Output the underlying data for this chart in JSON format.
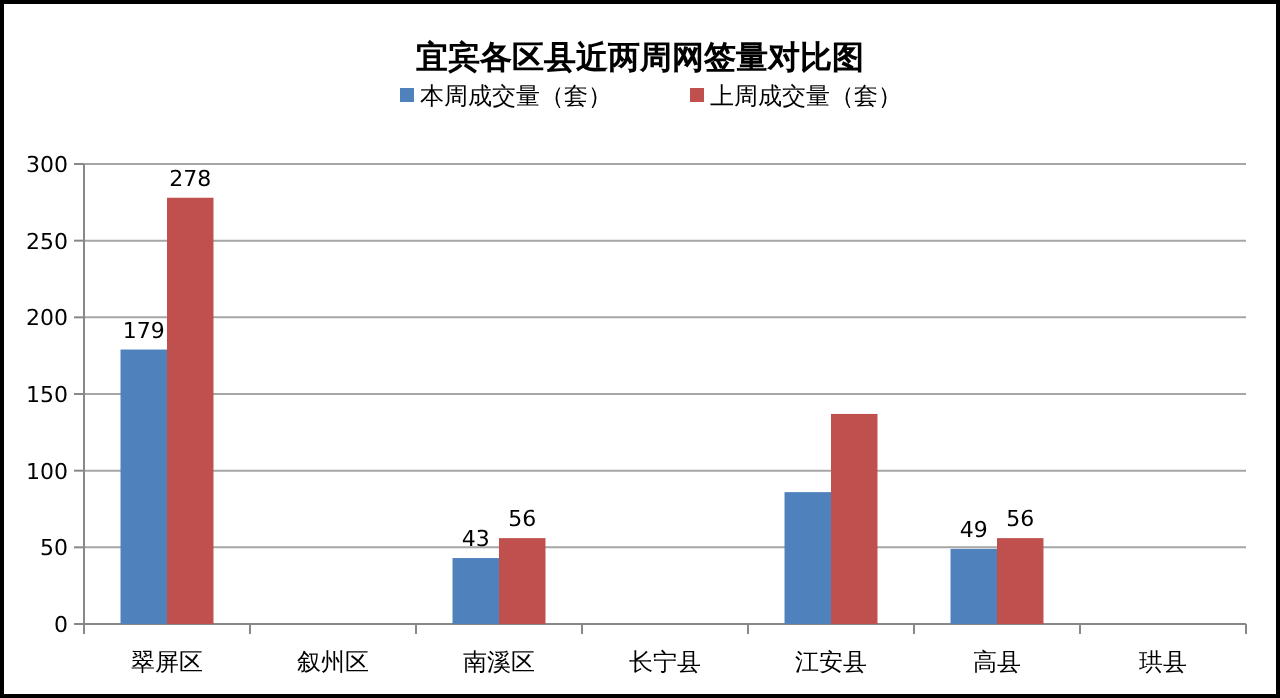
{
  "chart_data": {
    "type": "bar",
    "title": "宜宾各区县近两周网签量对比图",
    "categories": [
      "翠屏区",
      "叙州区",
      "南溪区",
      "长宁县",
      "江安县",
      "高县",
      "珙县"
    ],
    "series": [
      {
        "name": "本周成交量（套）",
        "color": "#4f81bd",
        "values": [
          179,
          null,
          43,
          null,
          86,
          49,
          null
        ],
        "value_labels": [
          "179",
          null,
          "43",
          null,
          null,
          "49",
          null
        ]
      },
      {
        "name": "上周成交量（套）",
        "color": "#c0504d",
        "values": [
          278,
          null,
          56,
          null,
          137,
          56,
          null
        ],
        "value_labels": [
          "278",
          null,
          "56",
          null,
          null,
          "56",
          null
        ]
      }
    ],
    "ylim": [
      0,
      300
    ],
    "yticks": [
      0,
      50,
      100,
      150,
      200,
      250,
      300
    ],
    "grid": "y",
    "legend": "top"
  }
}
